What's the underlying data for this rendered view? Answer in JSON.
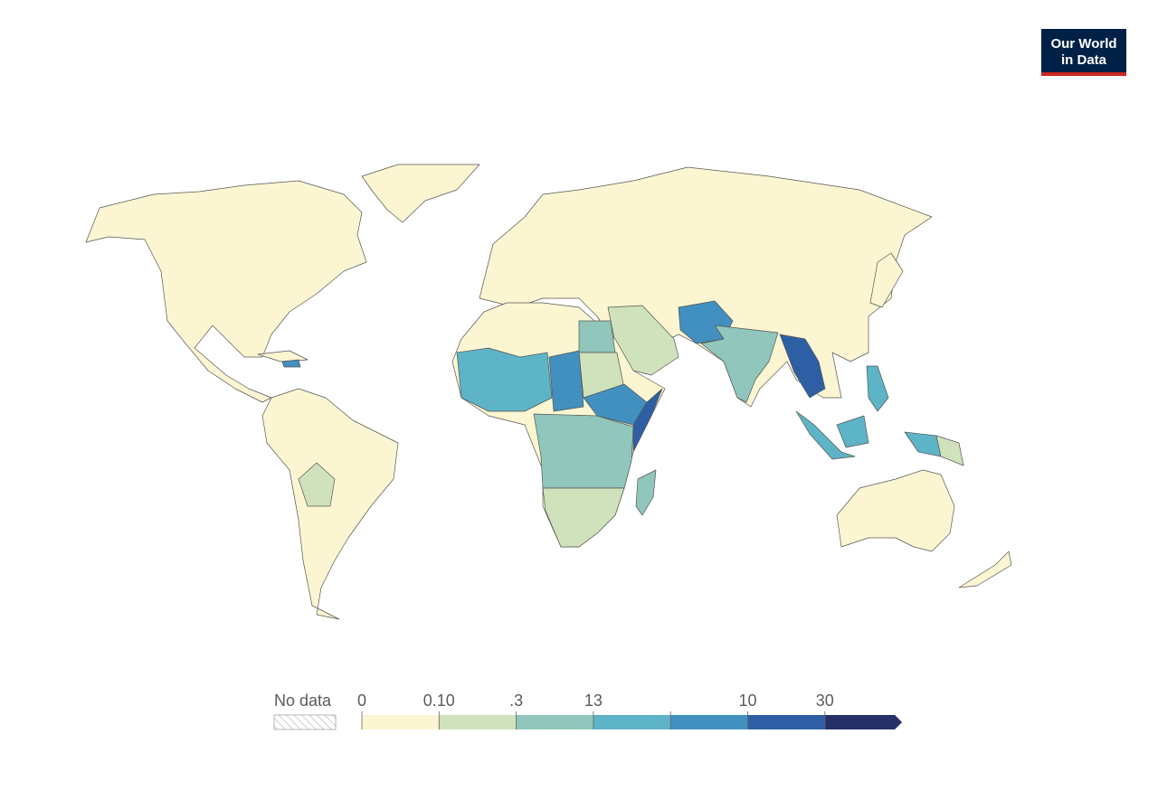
{
  "logo": {
    "line1": "Our World",
    "line2": "in Data"
  },
  "legend": {
    "no_data_label": "No data",
    "colors": [
      "#fbf6d1",
      "#cfe2bc",
      "#90c6bb",
      "#5db4c6",
      "#4190c0",
      "#2e5fa5",
      "#26316a"
    ],
    "ticks": [
      "0",
      "0.10",
      ".3",
      "13",
      null,
      "10",
      "30"
    ]
  }
}
